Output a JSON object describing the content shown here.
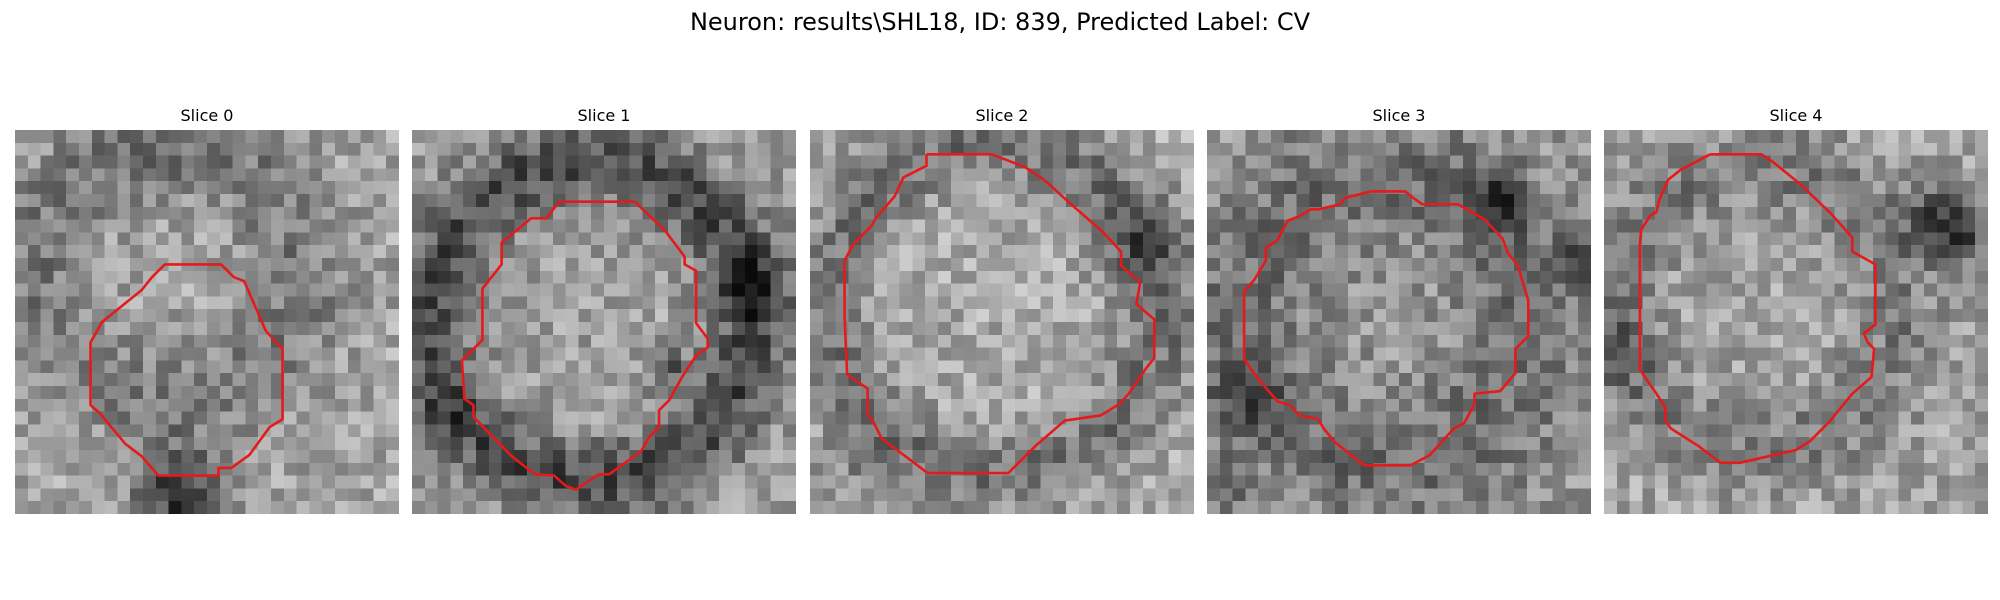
{
  "figure": {
    "title": "Neuron: results\\SHL18, ID: 839, Predicted Label: CV"
  },
  "slices": [
    {
      "title": "Slice 0",
      "contour_color": "#e41a1c"
    },
    {
      "title": "Slice 1",
      "contour_color": "#e41a1c"
    },
    {
      "title": "Slice 2",
      "contour_color": "#e41a1c"
    },
    {
      "title": "Slice 3",
      "contour_color": "#e41a1c"
    },
    {
      "title": "Slice 4",
      "contour_color": "#e41a1c"
    }
  ],
  "colormap": "gray"
}
